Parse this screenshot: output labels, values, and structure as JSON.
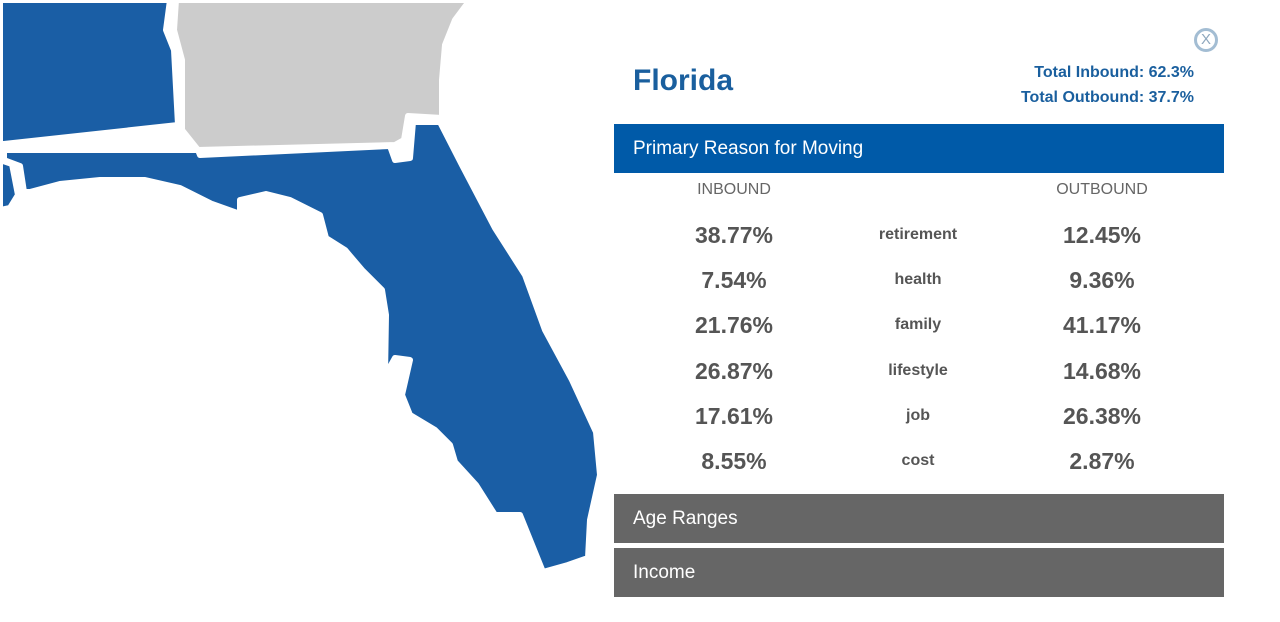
{
  "map": {
    "highlight_color": "#1a5ea5",
    "neighbor_color": "#cccccc",
    "border_color": "#ffffff"
  },
  "panel": {
    "close_label": "X",
    "state_name": "Florida",
    "total_inbound": "Total Inbound: 62.3%",
    "total_outbound": "Total Outbound: 37.7%",
    "sections": {
      "primary_reason": "Primary Reason for Moving",
      "age_ranges": "Age Ranges",
      "income": "Income"
    },
    "columns": {
      "inbound": "INBOUND",
      "outbound": "OUTBOUND"
    },
    "reasons": [
      {
        "label": "retirement",
        "inbound": "38.77%",
        "outbound": "12.45%"
      },
      {
        "label": "health",
        "inbound": "7.54%",
        "outbound": "9.36%"
      },
      {
        "label": "family",
        "inbound": "21.76%",
        "outbound": "41.17%"
      },
      {
        "label": "lifestyle",
        "inbound": "26.87%",
        "outbound": "14.68%"
      },
      {
        "label": "job",
        "inbound": "17.61%",
        "outbound": "26.38%"
      },
      {
        "label": "cost",
        "inbound": "8.55%",
        "outbound": "2.87%"
      }
    ],
    "colors": {
      "accent": "#005aa8",
      "title": "#1a5f9e",
      "collapsed_section": "#666666"
    }
  }
}
